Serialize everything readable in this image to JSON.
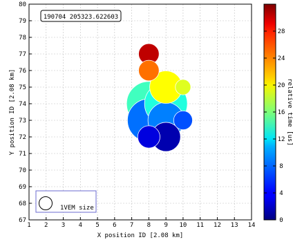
{
  "chart_data": {
    "type": "scatter",
    "title": "190704 205323.622603",
    "xlabel": "X position ID [2.08 km]",
    "ylabel": "Y position ID [2.08 km]",
    "xlim": [
      1,
      14
    ],
    "ylim": [
      67,
      80
    ],
    "x_ticks": [
      "1",
      "2",
      "3",
      "4",
      "5",
      "6",
      "7",
      "8",
      "9",
      "10",
      "11",
      "12",
      "13",
      "14"
    ],
    "y_ticks": [
      "67",
      "68",
      "69",
      "70",
      "71",
      "72",
      "73",
      "74",
      "75",
      "76",
      "77",
      "78",
      "79",
      "80"
    ],
    "grid": true,
    "points": [
      {
        "x": 8,
        "y": 73,
        "r": 1.25,
        "t": 7.5
      },
      {
        "x": 9,
        "y": 73,
        "r": 1.05,
        "t": 8.0
      },
      {
        "x": 8,
        "y": 74,
        "r": 1.3,
        "t": 14.0
      },
      {
        "x": 9,
        "y": 74,
        "r": 1.25,
        "t": 13.0
      },
      {
        "x": 8,
        "y": 77,
        "r": 0.6,
        "t": 30.0
      },
      {
        "x": 8,
        "y": 76,
        "r": 0.6,
        "t": 24.5
      },
      {
        "x": 9,
        "y": 75,
        "r": 0.95,
        "t": 20.0
      },
      {
        "x": 10,
        "y": 75,
        "r": 0.45,
        "t": 19.0
      },
      {
        "x": 10,
        "y": 73,
        "r": 0.55,
        "t": 6.5
      },
      {
        "x": 8,
        "y": 72,
        "r": 0.65,
        "t": 3.0
      },
      {
        "x": 9,
        "y": 72,
        "r": 0.85,
        "t": 1.5
      }
    ],
    "legend": {
      "label": "1VEM size",
      "placement": "bottom-left"
    },
    "colorbar": {
      "label": "relative time [us]",
      "range": [
        0,
        32
      ],
      "ticks": [
        "0",
        "4",
        "8",
        "12",
        "16",
        "20",
        "24",
        "28"
      ]
    }
  }
}
